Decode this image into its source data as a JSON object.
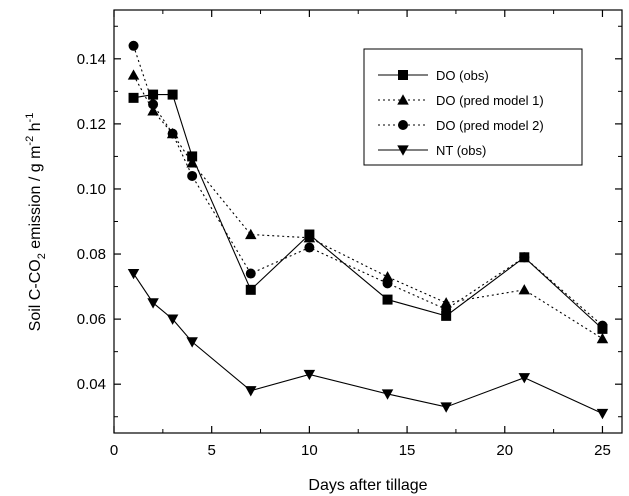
{
  "chart_data": {
    "type": "line",
    "xlabel": "Days after tillage",
    "ylabel_parts": [
      "Soil C-CO",
      "2",
      " emission / g m",
      "-2",
      " h",
      "-1"
    ],
    "xlim": [
      0,
      26
    ],
    "ylim": [
      0.025,
      0.155
    ],
    "xticks": [
      0,
      5,
      10,
      15,
      20,
      25
    ],
    "yticks": [
      0.04,
      0.06,
      0.08,
      0.1,
      0.12,
      0.14
    ],
    "ytick_labels": [
      "0.04",
      "0.06",
      "0.08",
      "0.10",
      "0.12",
      "0.14"
    ],
    "grid": false,
    "legend_position": "top-right",
    "series": [
      {
        "name": "DO (obs)",
        "marker": "square",
        "line": "solid",
        "x": [
          1,
          2,
          3,
          4,
          7,
          10,
          14,
          17,
          21,
          25
        ],
        "y": [
          0.128,
          0.129,
          0.129,
          0.11,
          0.069,
          0.086,
          0.066,
          0.061,
          0.079,
          0.057
        ]
      },
      {
        "name": "DO (pred model 1)",
        "marker": "triangle-up",
        "line": "dotted",
        "x": [
          1,
          2,
          3,
          4,
          7,
          10,
          14,
          17,
          21,
          25
        ],
        "y": [
          0.135,
          0.124,
          0.117,
          0.108,
          0.086,
          0.085,
          0.073,
          0.065,
          0.069,
          0.054
        ]
      },
      {
        "name": "DO (pred model 2)",
        "marker": "circle",
        "line": "dotted",
        "x": [
          1,
          2,
          3,
          4,
          7,
          10,
          14,
          17,
          21,
          25
        ],
        "y": [
          0.144,
          0.126,
          0.117,
          0.104,
          0.074,
          0.082,
          0.071,
          0.063,
          0.079,
          0.058
        ]
      },
      {
        "name": "NT (obs)",
        "marker": "triangle-down",
        "line": "solid",
        "x": [
          1,
          2,
          3,
          4,
          7,
          10,
          14,
          17,
          21,
          25
        ],
        "y": [
          0.074,
          0.065,
          0.06,
          0.053,
          0.038,
          0.043,
          0.037,
          0.033,
          0.042,
          0.031
        ]
      }
    ]
  }
}
